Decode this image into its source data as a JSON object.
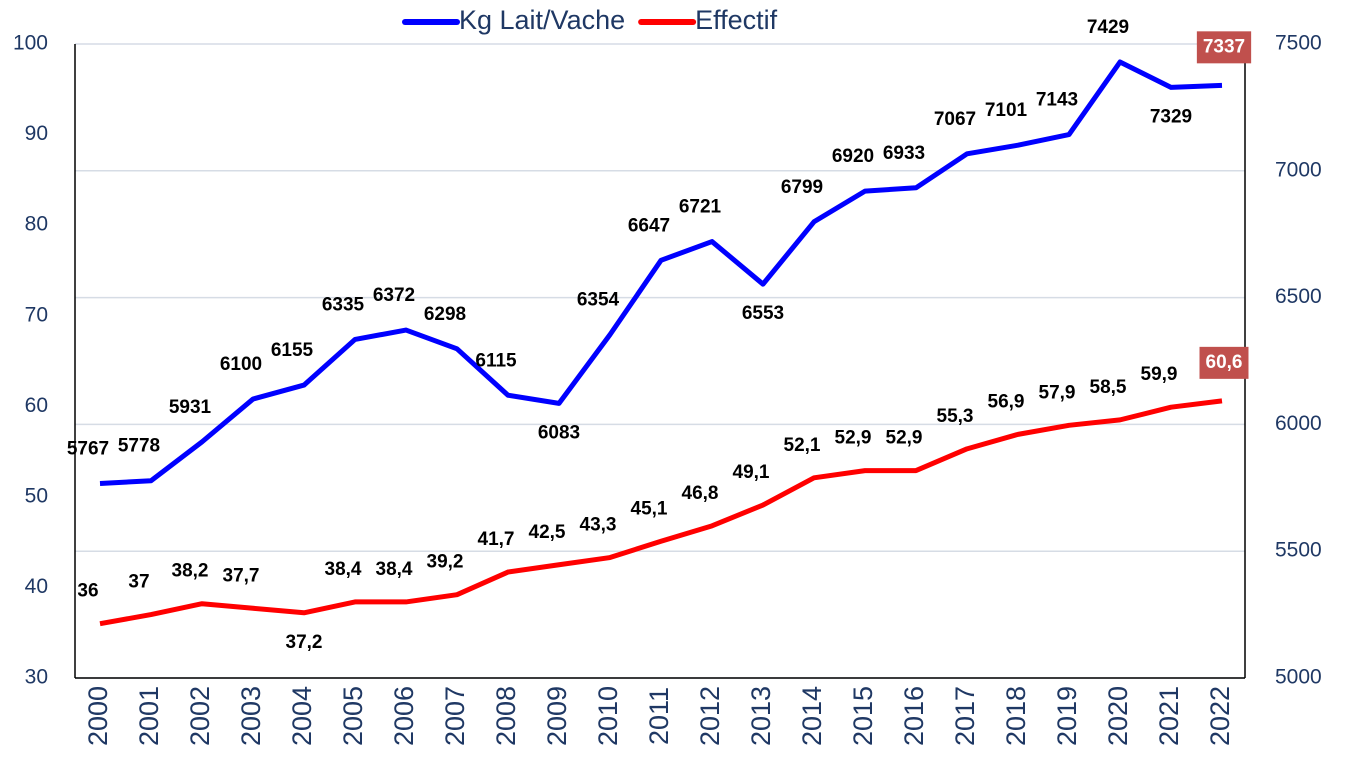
{
  "chart_data": {
    "type": "line",
    "categories": [
      "2000",
      "2001",
      "2002",
      "2003",
      "2004",
      "2005",
      "2006",
      "2007",
      "2008",
      "2009",
      "2010",
      "2011",
      "2012",
      "2013",
      "2014",
      "2015",
      "2016",
      "2017",
      "2018",
      "2019",
      "2020",
      "2021",
      "2022"
    ],
    "series": [
      {
        "name": "Kg Lait/Vache",
        "color": "#0000ff",
        "axis": "y2",
        "values": [
          5767,
          5778,
          5931,
          6100,
          6155,
          6335,
          6372,
          6298,
          6115,
          6083,
          6354,
          6647,
          6721,
          6553,
          6799,
          6920,
          6933,
          7067,
          7101,
          7143,
          7429,
          7329,
          7337
        ]
      },
      {
        "name": "Effectif",
        "color": "#ff0000",
        "values": [
          36,
          37,
          38.2,
          37.7,
          37.2,
          38.4,
          38.4,
          39.2,
          41.7,
          42.5,
          43.3,
          45.1,
          46.8,
          49.1,
          52.1,
          52.9,
          52.9,
          55.3,
          56.9,
          57.9,
          58.5,
          59.9,
          60.6
        ],
        "value_labels": [
          "36",
          "37",
          "38,2",
          "37,7",
          "37,2",
          "38,4",
          "38,4",
          "39,2",
          "41,7",
          "42,5",
          "43,3",
          "45,1",
          "46,8",
          "49,1",
          "52,1",
          "52,9",
          "52,9",
          "55,3",
          "56,9",
          "57,9",
          "58,5",
          "59,9",
          "60,6"
        ]
      }
    ],
    "ylim": [
      30,
      100
    ],
    "yticks": [
      30,
      40,
      50,
      60,
      70,
      80,
      90,
      100
    ],
    "y2lim": [
      5000,
      7500
    ],
    "y2ticks": [
      5000,
      5500,
      6000,
      6500,
      7000,
      7500
    ],
    "grid": true,
    "legend": "top"
  }
}
